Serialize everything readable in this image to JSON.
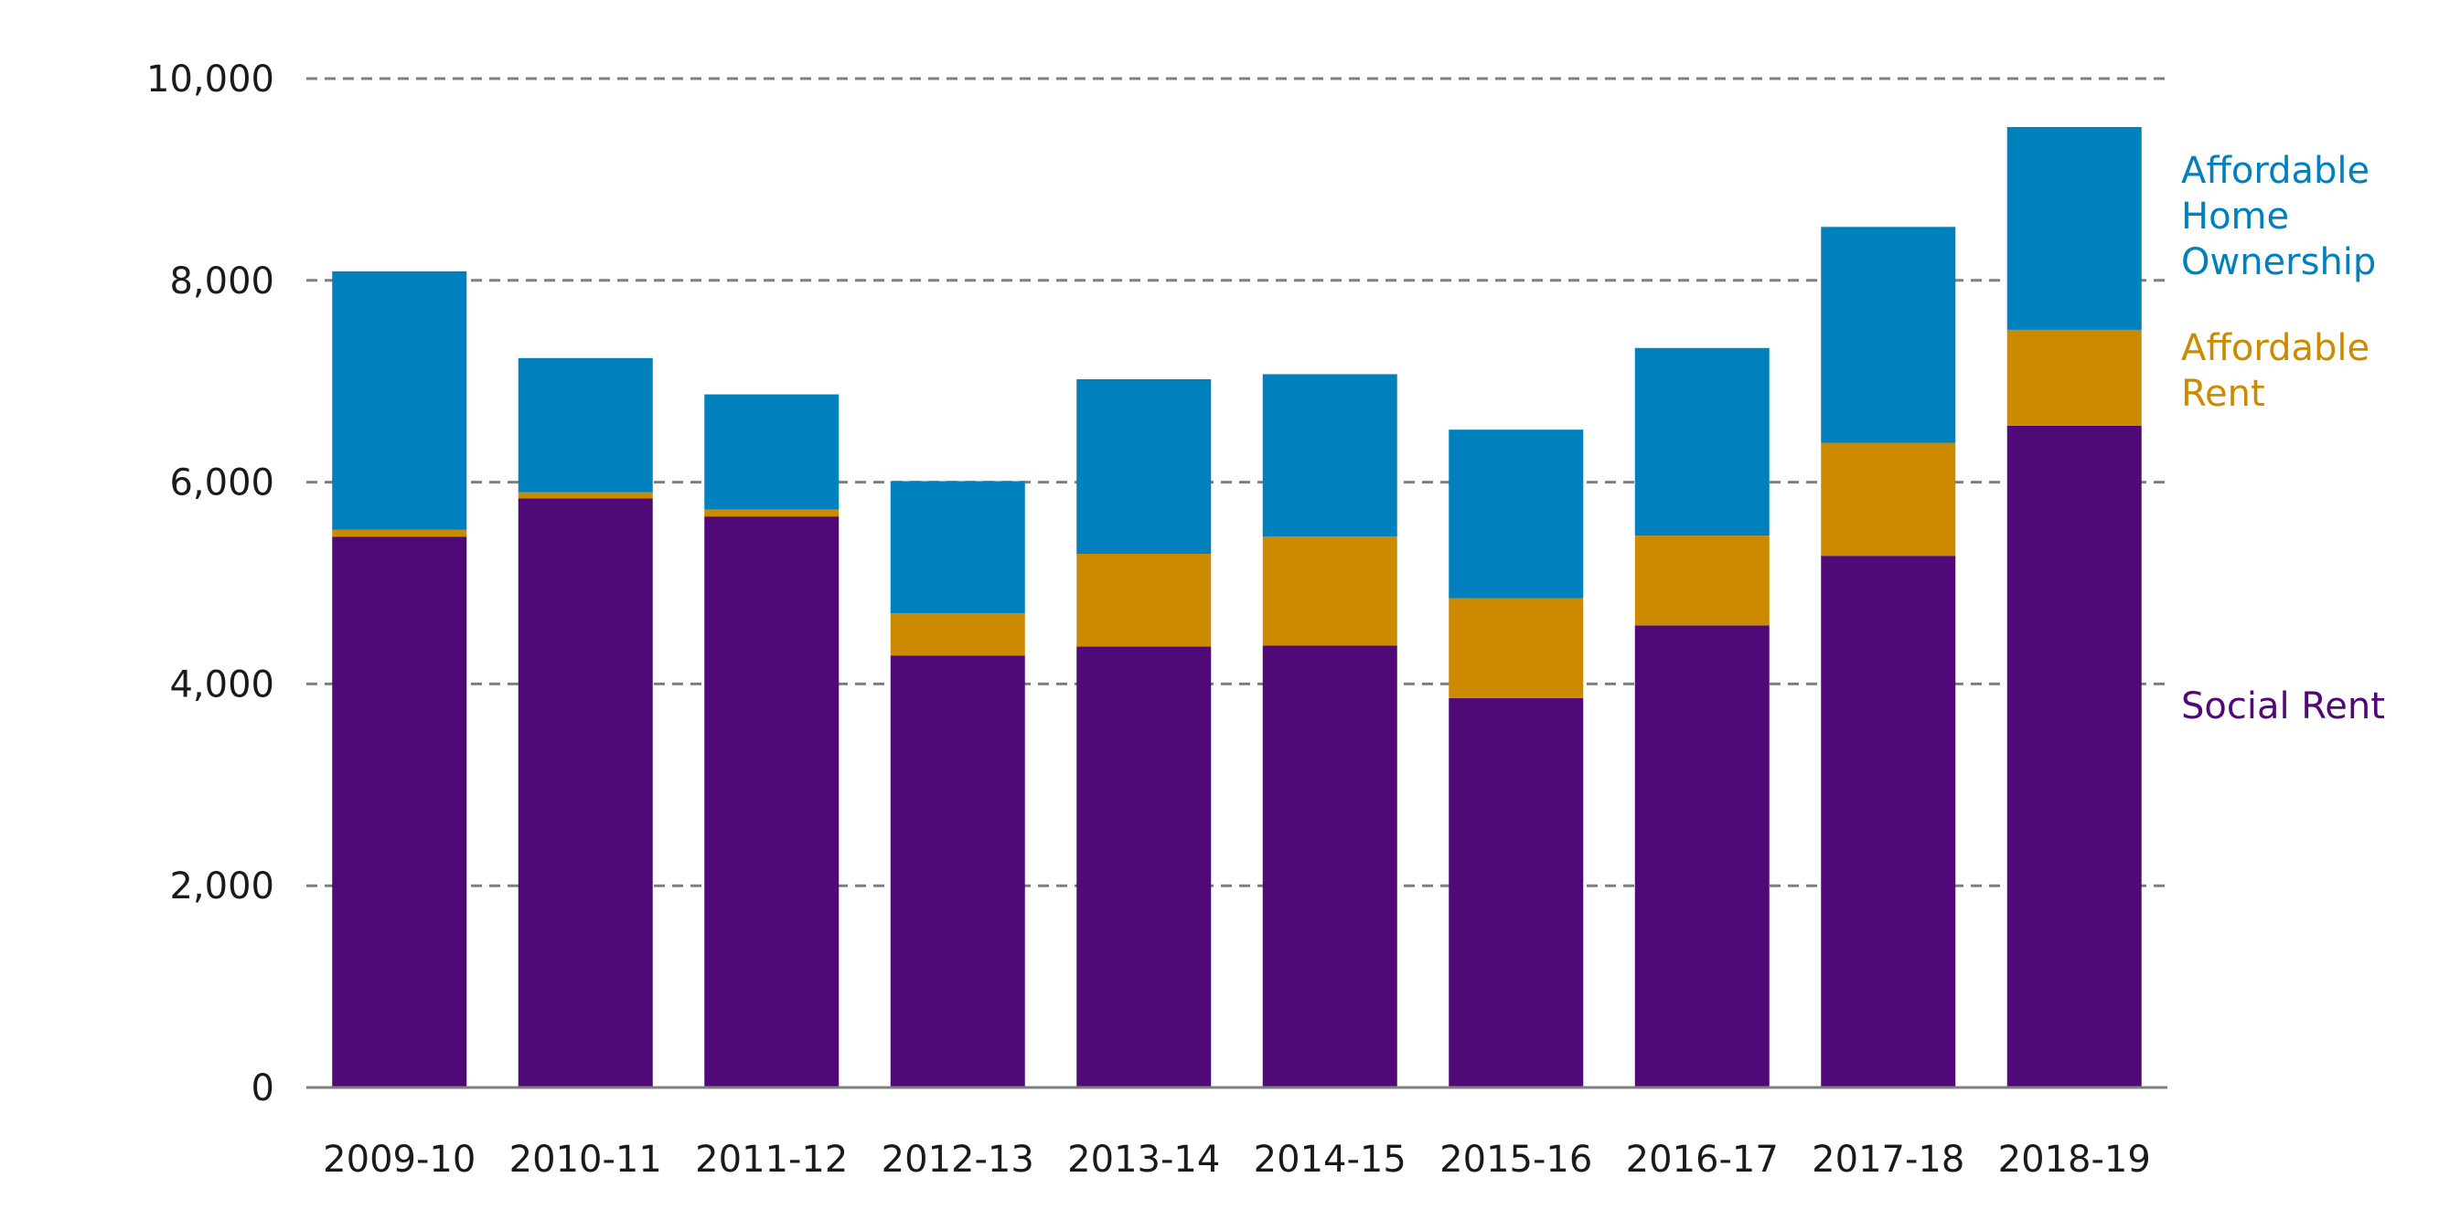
{
  "chart_data": {
    "type": "bar",
    "stacked": true,
    "title": "",
    "xlabel": "",
    "ylabel": "",
    "ylim": [
      0,
      10000
    ],
    "y_ticks": [
      0,
      2000,
      4000,
      6000,
      8000,
      10000
    ],
    "y_tick_labels": [
      "0",
      "2,000",
      "4,000",
      "6,000",
      "8,000",
      "10,000"
    ],
    "grid": "horizontal dashed",
    "legend_placement": "right",
    "categories": [
      "2009-10",
      "2010-11",
      "2011-12",
      "2012-13",
      "2013-14",
      "2014-15",
      "2015-16",
      "2016-17",
      "2017-18",
      "2018-19"
    ],
    "series": [
      {
        "key": "social",
        "name": "Social Rent",
        "color": "#500a78",
        "values": [
          5460,
          5840,
          5660,
          4280,
          4370,
          4380,
          3860,
          4580,
          5270,
          6560
        ]
      },
      {
        "key": "affordable_rent",
        "name": "Affordable Rent",
        "color": "#cc8a00",
        "values": [
          70,
          60,
          70,
          420,
          920,
          1080,
          990,
          890,
          1120,
          950
        ]
      },
      {
        "key": "home_ownership",
        "name": "Affordable Home Ownership",
        "color": "#0080bc",
        "values": [
          2560,
          1330,
          1140,
          1310,
          1730,
          1610,
          1670,
          1860,
          2140,
          2010
        ]
      }
    ],
    "legend": [
      {
        "lines": [
          "Affordable",
          "Home",
          "Ownership"
        ],
        "color": "#0080bc"
      },
      {
        "lines": [
          "Affordable",
          "Rent"
        ],
        "color": "#cc8a00"
      },
      {
        "lines": [
          "Social Rent"
        ],
        "color": "#500a78"
      }
    ]
  }
}
